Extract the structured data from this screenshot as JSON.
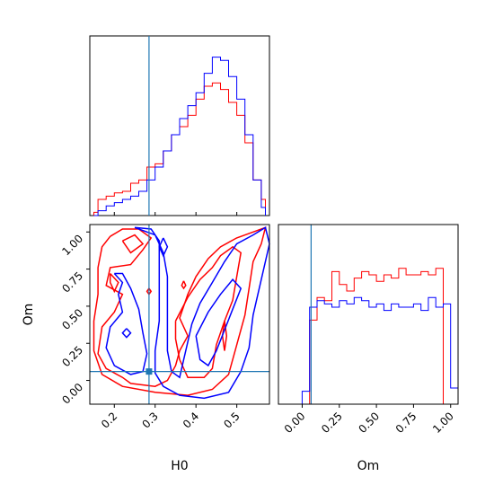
{
  "chart_data": {
    "type": "corner",
    "parameters": [
      "H0",
      "Om"
    ],
    "truth": {
      "H0": 0.285,
      "Om": 0.06,
      "color": "#1f77b4"
    },
    "series_colors": [
      "#ff0000",
      "#0000ff"
    ],
    "ranges": {
      "H0": [
        0.14,
        0.58
      ],
      "Om": [
        -0.16,
        1.05
      ]
    },
    "ticks": {
      "H0": [
        "0.2",
        "0.3",
        "0.4",
        "0.5"
      ],
      "Om": [
        "0.00",
        "0.25",
        "0.50",
        "0.75",
        "1.00"
      ]
    },
    "x_labels": {
      "H0": "H0",
      "Om": "Om"
    },
    "y_labels": {
      "Om": "Om"
    },
    "hist_H0": {
      "bin_edges": [
        0.15,
        0.16,
        0.18,
        0.2,
        0.22,
        0.24,
        0.26,
        0.28,
        0.3,
        0.32,
        0.34,
        0.36,
        0.38,
        0.4,
        0.42,
        0.44,
        0.46,
        0.48,
        0.5,
        0.52,
        0.54,
        0.56,
        0.57
      ],
      "red": [
        0.02,
        0.1,
        0.12,
        0.14,
        0.15,
        0.2,
        0.22,
        0.3,
        0.32,
        0.4,
        0.5,
        0.55,
        0.62,
        0.72,
        0.8,
        0.82,
        0.78,
        0.7,
        0.62,
        0.45,
        0.22,
        0.1
      ],
      "blue": [
        0.0,
        0.03,
        0.06,
        0.08,
        0.1,
        0.12,
        0.15,
        0.22,
        0.3,
        0.4,
        0.5,
        0.6,
        0.68,
        0.76,
        0.88,
        0.98,
        0.96,
        0.86,
        0.72,
        0.5,
        0.22,
        0.05
      ]
    },
    "hist_Om": {
      "bin_edges": [
        -0.15,
        -0.1,
        -0.05,
        0.0,
        0.05,
        0.1,
        0.15,
        0.2,
        0.25,
        0.3,
        0.35,
        0.4,
        0.45,
        0.5,
        0.55,
        0.6,
        0.65,
        0.7,
        0.75,
        0.8,
        0.85,
        0.9,
        0.95,
        1.0,
        1.05
      ],
      "red": [
        0.0,
        0.0,
        0.0,
        0.0,
        0.52,
        0.66,
        0.64,
        0.82,
        0.74,
        0.7,
        0.78,
        0.82,
        0.8,
        0.76,
        0.8,
        0.78,
        0.84,
        0.8,
        0.8,
        0.82,
        0.8,
        0.84,
        0.0,
        0.0
      ],
      "blue": [
        0.0,
        0.0,
        0.0,
        0.08,
        0.6,
        0.64,
        0.62,
        0.6,
        0.64,
        0.62,
        0.66,
        0.64,
        0.6,
        0.62,
        0.58,
        0.62,
        0.6,
        0.6,
        0.62,
        0.58,
        0.66,
        0.6,
        0.62,
        0.1
      ]
    },
    "contours_H0_Om": {
      "red": [
        [
          [
            0.19,
            0.97
          ],
          [
            0.22,
            1.02
          ],
          [
            0.26,
            1.02
          ],
          [
            0.29,
            0.96
          ],
          [
            0.27,
            0.88
          ],
          [
            0.24,
            0.78
          ],
          [
            0.19,
            0.76
          ],
          [
            0.18,
            0.64
          ],
          [
            0.22,
            0.58
          ],
          [
            0.2,
            0.46
          ],
          [
            0.17,
            0.36
          ],
          [
            0.16,
            0.18
          ],
          [
            0.18,
            0.08
          ],
          [
            0.22,
            0.02
          ],
          [
            0.24,
            -0.02
          ],
          [
            0.3,
            -0.04
          ],
          [
            0.33,
            0.0
          ],
          [
            0.35,
            0.1
          ],
          [
            0.36,
            0.2
          ],
          [
            0.38,
            0.3
          ],
          [
            0.36,
            0.42
          ],
          [
            0.38,
            0.58
          ],
          [
            0.4,
            0.7
          ],
          [
            0.43,
            0.82
          ],
          [
            0.46,
            0.9
          ],
          [
            0.5,
            0.96
          ],
          [
            0.54,
            1.0
          ],
          [
            0.57,
            1.03
          ],
          [
            0.56,
            0.92
          ],
          [
            0.54,
            0.8
          ],
          [
            0.53,
            0.62
          ],
          [
            0.52,
            0.44
          ],
          [
            0.5,
            0.24
          ],
          [
            0.48,
            0.04
          ],
          [
            0.44,
            -0.06
          ],
          [
            0.38,
            -0.1
          ],
          [
            0.3,
            -0.08
          ],
          [
            0.22,
            -0.04
          ],
          [
            0.17,
            0.04
          ],
          [
            0.15,
            0.2
          ],
          [
            0.15,
            0.4
          ],
          [
            0.16,
            0.58
          ],
          [
            0.16,
            0.76
          ],
          [
            0.17,
            0.9
          ],
          [
            0.19,
            0.97
          ]
        ],
        [
          [
            0.22,
            0.94
          ],
          [
            0.25,
            0.98
          ],
          [
            0.27,
            0.92
          ],
          [
            0.24,
            0.86
          ],
          [
            0.22,
            0.94
          ]
        ],
        [
          [
            0.35,
            0.4
          ],
          [
            0.38,
            0.56
          ],
          [
            0.41,
            0.68
          ],
          [
            0.44,
            0.76
          ],
          [
            0.46,
            0.84
          ],
          [
            0.49,
            0.9
          ],
          [
            0.51,
            0.86
          ],
          [
            0.5,
            0.7
          ],
          [
            0.49,
            0.54
          ],
          [
            0.47,
            0.4
          ],
          [
            0.45,
            0.24
          ],
          [
            0.44,
            0.08
          ],
          [
            0.42,
            0.02
          ],
          [
            0.38,
            0.02
          ],
          [
            0.36,
            0.14
          ],
          [
            0.35,
            0.28
          ],
          [
            0.35,
            0.4
          ]
        ],
        [
          [
            0.19,
            0.72
          ],
          [
            0.21,
            0.66
          ],
          [
            0.2,
            0.6
          ],
          [
            0.19,
            0.66
          ],
          [
            0.19,
            0.72
          ]
        ],
        [
          [
            0.285,
            0.62
          ],
          [
            0.29,
            0.6
          ],
          [
            0.285,
            0.58
          ],
          [
            0.28,
            0.6
          ],
          [
            0.285,
            0.62
          ]
        ],
        [
          [
            0.37,
            0.67
          ],
          [
            0.375,
            0.64
          ],
          [
            0.37,
            0.62
          ],
          [
            0.365,
            0.64
          ],
          [
            0.37,
            0.67
          ]
        ],
        [
          [
            0.47,
            0.4
          ],
          [
            0.475,
            0.3
          ],
          [
            0.47,
            0.2
          ],
          [
            0.465,
            0.3
          ],
          [
            0.47,
            0.4
          ]
        ]
      ],
      "blue": [
        [
          [
            0.25,
            1.03
          ],
          [
            0.29,
            1.02
          ],
          [
            0.31,
            0.94
          ],
          [
            0.31,
            0.8
          ],
          [
            0.31,
            0.6
          ],
          [
            0.31,
            0.4
          ],
          [
            0.3,
            0.2
          ],
          [
            0.3,
            0.05
          ],
          [
            0.32,
            -0.04
          ],
          [
            0.36,
            -0.1
          ],
          [
            0.42,
            -0.12
          ],
          [
            0.48,
            -0.08
          ],
          [
            0.51,
            0.06
          ],
          [
            0.53,
            0.22
          ],
          [
            0.54,
            0.44
          ],
          [
            0.56,
            0.68
          ],
          [
            0.58,
            0.92
          ],
          [
            0.57,
            1.03
          ],
          [
            0.54,
            0.98
          ],
          [
            0.5,
            0.92
          ],
          [
            0.47,
            0.8
          ],
          [
            0.44,
            0.66
          ],
          [
            0.41,
            0.52
          ],
          [
            0.39,
            0.38
          ],
          [
            0.38,
            0.26
          ],
          [
            0.37,
            0.14
          ],
          [
            0.36,
            0.02
          ],
          [
            0.34,
            0.06
          ],
          [
            0.33,
            0.2
          ],
          [
            0.33,
            0.36
          ],
          [
            0.33,
            0.52
          ],
          [
            0.33,
            0.7
          ],
          [
            0.32,
            0.86
          ],
          [
            0.3,
            0.98
          ],
          [
            0.25,
            1.03
          ]
        ],
        [
          [
            0.2,
            0.72
          ],
          [
            0.22,
            0.66
          ],
          [
            0.21,
            0.58
          ],
          [
            0.22,
            0.46
          ],
          [
            0.19,
            0.36
          ],
          [
            0.18,
            0.22
          ],
          [
            0.2,
            0.1
          ],
          [
            0.24,
            0.04
          ],
          [
            0.27,
            0.06
          ],
          [
            0.28,
            0.18
          ],
          [
            0.27,
            0.32
          ],
          [
            0.26,
            0.48
          ],
          [
            0.24,
            0.62
          ],
          [
            0.22,
            0.72
          ],
          [
            0.2,
            0.72
          ]
        ],
        [
          [
            0.4,
            0.3
          ],
          [
            0.43,
            0.46
          ],
          [
            0.46,
            0.58
          ],
          [
            0.49,
            0.68
          ],
          [
            0.51,
            0.62
          ],
          [
            0.49,
            0.48
          ],
          [
            0.47,
            0.34
          ],
          [
            0.45,
            0.2
          ],
          [
            0.43,
            0.1
          ],
          [
            0.41,
            0.14
          ],
          [
            0.4,
            0.3
          ]
        ],
        [
          [
            0.32,
            0.96
          ],
          [
            0.33,
            0.9
          ],
          [
            0.32,
            0.84
          ],
          [
            0.31,
            0.9
          ],
          [
            0.32,
            0.96
          ]
        ],
        [
          [
            0.23,
            0.35
          ],
          [
            0.24,
            0.32
          ],
          [
            0.23,
            0.29
          ],
          [
            0.22,
            0.32
          ],
          [
            0.23,
            0.35
          ]
        ]
      ]
    }
  }
}
